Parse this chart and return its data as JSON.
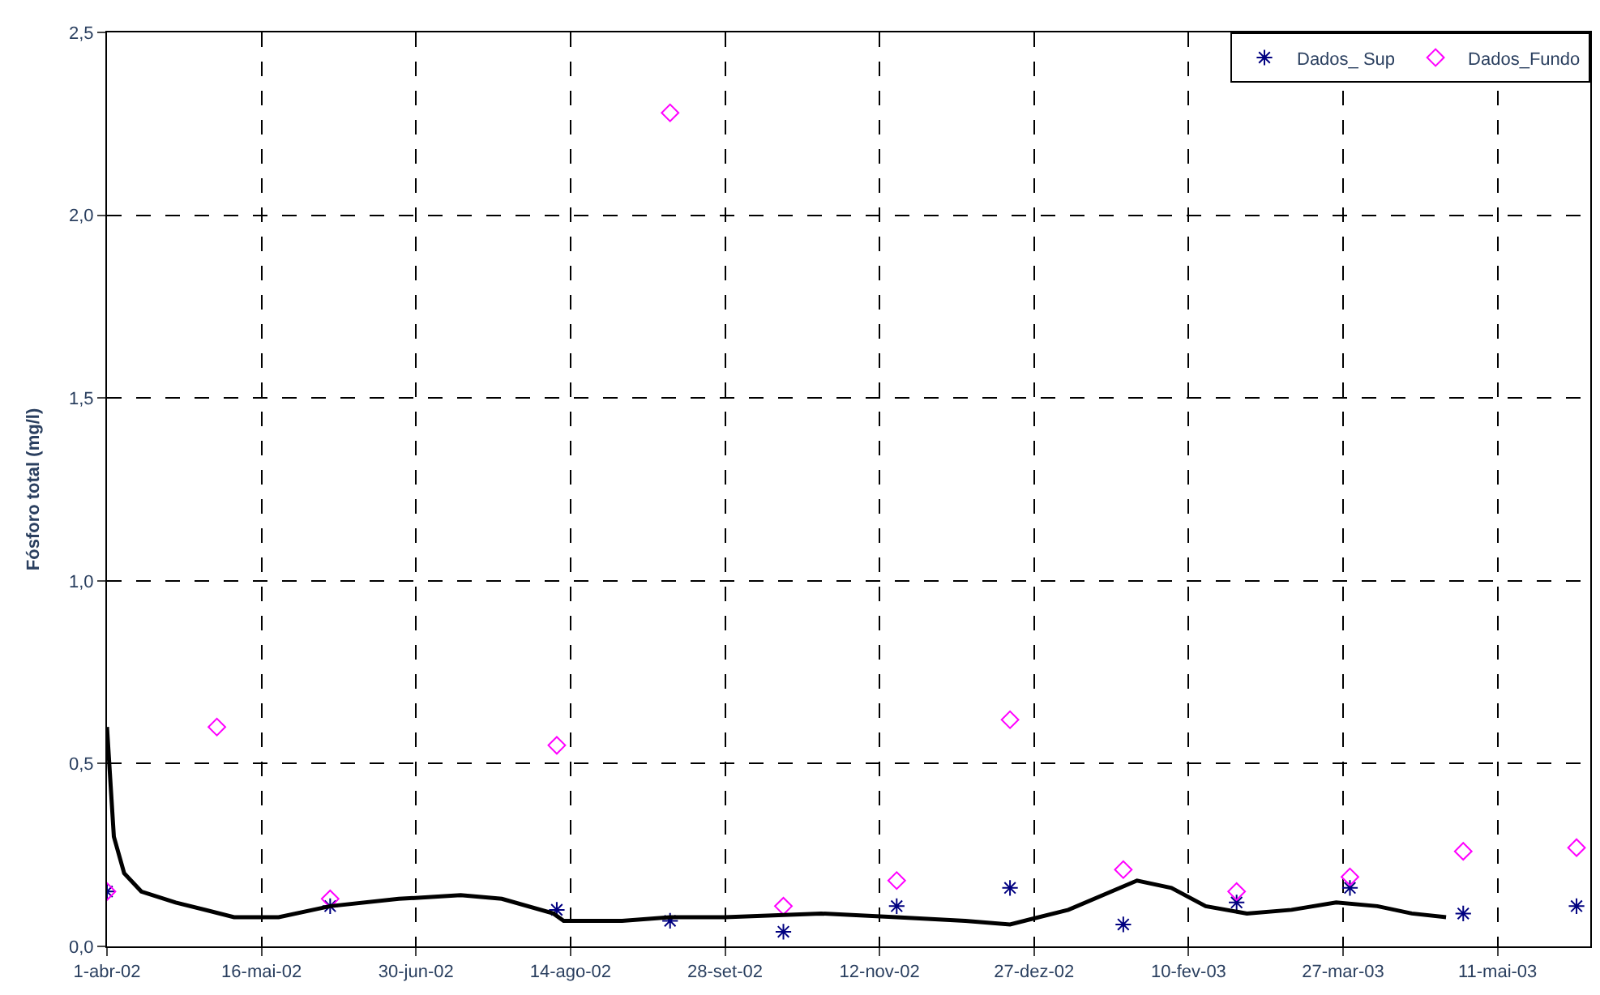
{
  "chart_data": {
    "type": "scatter",
    "ylabel": "Fósforo total (mg/l)",
    "xlim": [
      "2002-04-01",
      "2003-06-07"
    ],
    "xticks": [
      {
        "value": "2002-04-01",
        "label": "1-abr-02"
      },
      {
        "value": "2002-05-16",
        "label": "16-mai-02"
      },
      {
        "value": "2002-06-30",
        "label": "30-jun-02"
      },
      {
        "value": "2002-08-14",
        "label": "14-ago-02"
      },
      {
        "value": "2002-09-28",
        "label": "28-set-02"
      },
      {
        "value": "2002-11-12",
        "label": "12-nov-02"
      },
      {
        "value": "2002-12-27",
        "label": "27-dez-02"
      },
      {
        "value": "2003-02-10",
        "label": "10-fev-03"
      },
      {
        "value": "2003-03-27",
        "label": "27-mar-03"
      },
      {
        "value": "2003-05-11",
        "label": "11-mai-03"
      }
    ],
    "ylim": [
      0,
      2.5
    ],
    "yticks": [
      {
        "value": 0,
        "label": "0,0"
      },
      {
        "value": 0.5,
        "label": "0,5"
      },
      {
        "value": 1,
        "label": "1,0"
      },
      {
        "value": 1.5,
        "label": "1,5"
      },
      {
        "value": 2,
        "label": "2,0"
      },
      {
        "value": 2.5,
        "label": "2,5"
      }
    ],
    "grid": true,
    "legend": "top right",
    "line_style": "solid",
    "series": [
      {
        "name": "Dados_ Sup",
        "marker": "cross",
        "color": "#000080",
        "x": [
          "2002-04-01",
          "2002-06-05",
          "2002-08-10",
          "2002-09-12",
          "2002-10-15",
          "2002-11-17",
          "2002-12-20",
          "2003-01-22",
          "2003-02-24",
          "2003-03-29",
          "2003-05-01",
          "2003-06-03"
        ],
        "values": [
          0.15,
          0.11,
          0.1,
          0.07,
          0.04,
          0.11,
          0.16,
          0.06,
          0.12,
          0.16,
          0.09,
          0.11
        ]
      },
      {
        "name": "Dados_Fundo",
        "marker": "diamond",
        "color": "#ff00ff",
        "x": [
          "2002-04-01",
          "2002-05-03",
          "2002-06-05",
          "2002-08-10",
          "2002-09-12",
          "2002-10-15",
          "2002-11-17",
          "2002-12-20",
          "2003-01-22",
          "2003-02-24",
          "2003-03-29",
          "2003-05-01",
          "2003-06-03"
        ],
        "values": [
          0.15,
          0.6,
          0.13,
          0.55,
          2.28,
          0.11,
          0.18,
          0.62,
          0.21,
          0.15,
          0.19,
          0.26,
          0.27
        ]
      },
      {
        "type": "line",
        "marker": "none",
        "color": "#000000",
        "x": [
          "2002-04-01",
          "2002-04-03",
          "2002-04-06",
          "2002-04-11",
          "2002-04-21",
          "2002-05-08",
          "2002-05-21",
          "2002-06-05",
          "2002-06-25",
          "2002-07-13",
          "2002-07-25",
          "2002-08-09",
          "2002-08-12",
          "2002-08-29",
          "2002-09-12",
          "2002-09-28",
          "2002-10-26",
          "2002-11-17",
          "2002-12-07",
          "2002-12-20",
          "2003-01-06",
          "2003-01-26",
          "2003-02-05",
          "2003-02-15",
          "2003-02-27",
          "2003-03-12",
          "2003-03-25",
          "2003-04-06",
          "2003-04-16",
          "2003-04-26"
        ],
        "values": [
          0.6,
          0.3,
          0.2,
          0.15,
          0.12,
          0.08,
          0.08,
          0.11,
          0.13,
          0.14,
          0.13,
          0.09,
          0.07,
          0.07,
          0.08,
          0.08,
          0.09,
          0.08,
          0.07,
          0.06,
          0.1,
          0.18,
          0.16,
          0.11,
          0.09,
          0.1,
          0.12,
          0.11,
          0.09,
          0.08
        ]
      }
    ]
  }
}
